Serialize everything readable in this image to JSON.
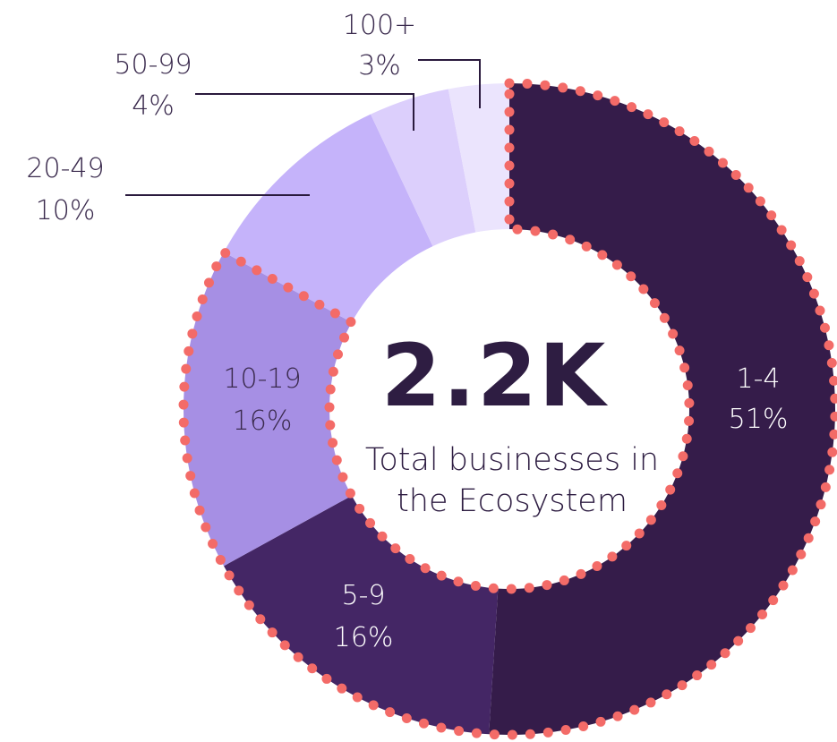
{
  "chart_data": {
    "type": "pie",
    "variant": "donut",
    "categories": [
      "1-4",
      "5-9",
      "10-19",
      "20-49",
      "50-99",
      "100+"
    ],
    "values": [
      51,
      16,
      16,
      10,
      4,
      3
    ],
    "value_labels": [
      "51%",
      "16%",
      "16%",
      "10%",
      "4%",
      "3%"
    ],
    "colors": [
      "#351c4a",
      "#442665",
      "#a68fe4",
      "#c5b3fa",
      "#dccffc",
      "#ebe4fd"
    ],
    "highlight_color": "#f36b68",
    "highlighted_categories": [
      "1-4",
      "5-9",
      "10-19"
    ],
    "center_value": "2.2K",
    "center_text": [
      "Total businesses in",
      "the Ecosystem"
    ],
    "center_text_color": "#2e1d42",
    "label_color_dark": "#3a2a4d",
    "label_color_light": "#ffffff"
  }
}
